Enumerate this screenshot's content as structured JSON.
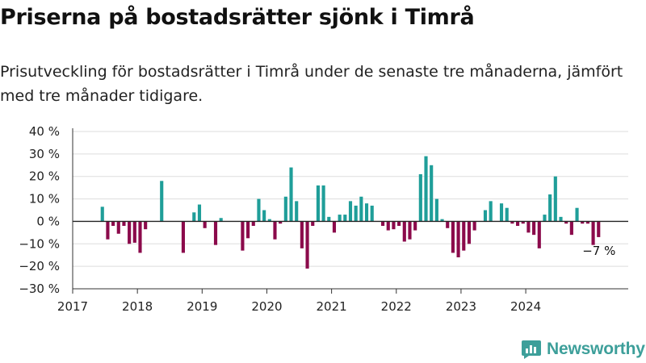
{
  "title": "Priserna på bostadsrätter sjönk i Timrå",
  "subtitle": "Prisutveckling för bostadsrätter i Timrå under de senaste tre månaderna, jämfört med tre månader tidigare.",
  "brand": {
    "name": "Newsworthy",
    "icon": "newsworthy-logo-icon",
    "color": "#3d9f9a"
  },
  "colors": {
    "positive": "#1f9e99",
    "negative": "#8b0a4b",
    "grid": "#dddddd",
    "axis": "#333333"
  },
  "chart_data": {
    "type": "bar",
    "title": "",
    "xlabel": "",
    "ylabel": "",
    "ylim": [
      -30,
      40
    ],
    "y_ticks": [
      40,
      30,
      20,
      10,
      0,
      -10,
      -20,
      -30
    ],
    "y_tick_labels": [
      "40 %",
      "30 %",
      "20 %",
      "10 %",
      "0 %",
      "−10 %",
      "−20 %",
      "−30 %"
    ],
    "x_ticks": [
      "2017",
      "2018",
      "2019",
      "2020",
      "2021",
      "2022",
      "2023",
      "2024"
    ],
    "grid": true,
    "x_start": "2017-01",
    "x_end": "2025-08",
    "series": [
      {
        "values": [
          {
            "x": "2017-06",
            "y": 6.5
          },
          {
            "x": "2017-07",
            "y": -8
          },
          {
            "x": "2017-08",
            "y": -2
          },
          {
            "x": "2017-09",
            "y": -5.5
          },
          {
            "x": "2017-10",
            "y": -2
          },
          {
            "x": "2017-11",
            "y": -10
          },
          {
            "x": "2017-12",
            "y": -9.5
          },
          {
            "x": "2018-01",
            "y": -14
          },
          {
            "x": "2018-02",
            "y": -3.5
          },
          {
            "x": "2018-05",
            "y": 18
          },
          {
            "x": "2018-09",
            "y": -14
          },
          {
            "x": "2018-11",
            "y": 4
          },
          {
            "x": "2018-12",
            "y": 7.5
          },
          {
            "x": "2019-01",
            "y": -3
          },
          {
            "x": "2019-03",
            "y": -10.5
          },
          {
            "x": "2019-04",
            "y": 1.5
          },
          {
            "x": "2019-08",
            "y": -13
          },
          {
            "x": "2019-09",
            "y": -7.5
          },
          {
            "x": "2019-10",
            "y": -2
          },
          {
            "x": "2019-11",
            "y": 10
          },
          {
            "x": "2019-12",
            "y": 5
          },
          {
            "x": "2020-01",
            "y": 1
          },
          {
            "x": "2020-02",
            "y": -8
          },
          {
            "x": "2020-03",
            "y": -1
          },
          {
            "x": "2020-04",
            "y": 11
          },
          {
            "x": "2020-05",
            "y": 24
          },
          {
            "x": "2020-06",
            "y": 9
          },
          {
            "x": "2020-07",
            "y": -12
          },
          {
            "x": "2020-08",
            "y": -21
          },
          {
            "x": "2020-09",
            "y": -2
          },
          {
            "x": "2020-10",
            "y": 16
          },
          {
            "x": "2020-11",
            "y": 16
          },
          {
            "x": "2020-12",
            "y": 2
          },
          {
            "x": "2021-01",
            "y": -5
          },
          {
            "x": "2021-02",
            "y": 3
          },
          {
            "x": "2021-03",
            "y": 3
          },
          {
            "x": "2021-04",
            "y": 9
          },
          {
            "x": "2021-05",
            "y": 7
          },
          {
            "x": "2021-06",
            "y": 11
          },
          {
            "x": "2021-07",
            "y": 8
          },
          {
            "x": "2021-08",
            "y": 7
          },
          {
            "x": "2021-10",
            "y": -2
          },
          {
            "x": "2021-11",
            "y": -4
          },
          {
            "x": "2021-12",
            "y": -3.5
          },
          {
            "x": "2022-01",
            "y": -2
          },
          {
            "x": "2022-02",
            "y": -9
          },
          {
            "x": "2022-03",
            "y": -8
          },
          {
            "x": "2022-04",
            "y": -4
          },
          {
            "x": "2022-05",
            "y": 21
          },
          {
            "x": "2022-06",
            "y": 29
          },
          {
            "x": "2022-07",
            "y": 25
          },
          {
            "x": "2022-08",
            "y": 10
          },
          {
            "x": "2022-09",
            "y": 1
          },
          {
            "x": "2022-10",
            "y": -3
          },
          {
            "x": "2022-11",
            "y": -14
          },
          {
            "x": "2022-12",
            "y": -16
          },
          {
            "x": "2023-01",
            "y": -13
          },
          {
            "x": "2023-02",
            "y": -10
          },
          {
            "x": "2023-03",
            "y": -4
          },
          {
            "x": "2023-05",
            "y": 5
          },
          {
            "x": "2023-06",
            "y": 9
          },
          {
            "x": "2023-08",
            "y": 8
          },
          {
            "x": "2023-09",
            "y": 6
          },
          {
            "x": "2023-10",
            "y": -1
          },
          {
            "x": "2023-11",
            "y": -2
          },
          {
            "x": "2023-12",
            "y": -1
          },
          {
            "x": "2024-01",
            "y": -5
          },
          {
            "x": "2024-02",
            "y": -6
          },
          {
            "x": "2024-03",
            "y": -12
          },
          {
            "x": "2024-04",
            "y": 3
          },
          {
            "x": "2024-05",
            "y": 12
          },
          {
            "x": "2024-06",
            "y": 20
          },
          {
            "x": "2024-07",
            "y": 2
          },
          {
            "x": "2024-08",
            "y": -1
          },
          {
            "x": "2024-09",
            "y": -6
          },
          {
            "x": "2024-10",
            "y": 6
          },
          {
            "x": "2024-11",
            "y": -1
          },
          {
            "x": "2024-12",
            "y": -1
          },
          {
            "x": "2025-01",
            "y": -10.5
          },
          {
            "x": "2025-02",
            "y": -7
          }
        ]
      }
    ],
    "annotation": {
      "x": "2025-02",
      "text": "−7 %"
    }
  }
}
